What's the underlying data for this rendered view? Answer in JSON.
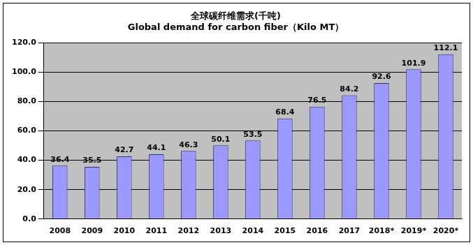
{
  "chart_data": {
    "type": "bar",
    "title": [
      "全球碳纤维需求(千吨)",
      "Global demand for carbon fiber（Kilo MT）"
    ],
    "categories": [
      "2008",
      "2009",
      "2010",
      "2011",
      "2012",
      "2013",
      "2014",
      "2015",
      "2016",
      "2017",
      "2018*",
      "2019*",
      "2020*"
    ],
    "values": [
      36.4,
      35.5,
      42.7,
      44.1,
      46.3,
      50.1,
      53.5,
      68.4,
      76.5,
      84.2,
      92.6,
      101.9,
      112.1
    ],
    "color": "#9999ff",
    "ylim": [
      0,
      120
    ],
    "yticks": [
      {
        "value": 0,
        "label": "0.0"
      },
      {
        "value": 20,
        "label": "20.0"
      },
      {
        "value": 40,
        "label": "40.0"
      },
      {
        "value": 60,
        "label": "60.0"
      },
      {
        "value": 80,
        "label": "80.0"
      },
      {
        "value": 100,
        "label": "100.0"
      },
      {
        "value": 120,
        "label": "120.0"
      }
    ],
    "grid": true,
    "data_labels": true
  }
}
